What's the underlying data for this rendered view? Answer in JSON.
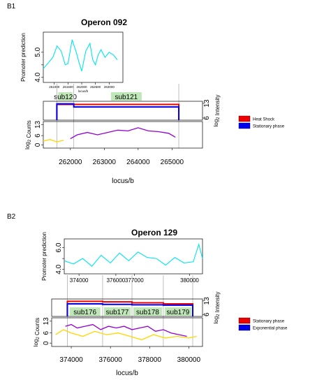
{
  "chart_data": [
    {
      "panel_id": "B1",
      "type": "line",
      "title": "Operon 092",
      "promoter": {
        "ylabel": "Promoter prediction",
        "ylim": [
          3.8,
          5.8
        ],
        "yticks": [
          4.0,
          4.5,
          5.0
        ],
        "ytick_labels": [
          "4.0",
          "",
          "5.0"
        ],
        "xlim": [
          260600,
          263500
        ],
        "xticks": [
          261000,
          261500,
          262000,
          262500,
          263000
        ],
        "xticks_display": [
          261000,
          261500,
          262000,
          262500,
          263000
        ],
        "xlabel": "locus/b",
        "series": [
          {
            "color": "#00e5ee",
            "x": [
              260600,
              260800,
              260950,
              261100,
              261250,
              261400,
              261500,
              261650,
              261800,
              261900,
              262000,
              262150,
              262300,
              262400,
              262500,
              262600,
              262700,
              262850,
              263000,
              263150,
              263300
            ],
            "y": [
              4.35,
              4.6,
              4.8,
              5.25,
              5.05,
              4.5,
              4.55,
              5.5,
              5.0,
              4.6,
              4.25,
              5.05,
              5.35,
              4.7,
              4.5,
              4.9,
              5.1,
              4.8,
              5.0,
              4.9,
              4.7
            ]
          }
        ]
      },
      "intensity": {
        "ylabel_main": "log",
        "ylabel_sub": "2",
        "ylabel_rest": " Intensity",
        "yticks": [
          6,
          13
        ],
        "ylim": [
          5,
          14
        ]
      },
      "counts": {
        "ylabel_main": "log",
        "ylabel_sub": "2",
        "ylabel_rest": " Counts",
        "yticks": [
          0,
          6,
          13
        ],
        "ylim": [
          -2,
          15
        ],
        "series": [
          {
            "color": "#ffd700",
            "x": [
              261200,
              261400,
              261600,
              261800
            ],
            "y": [
              2.5,
              3.5,
              2,
              3
            ]
          },
          {
            "color": "#9400d3",
            "x": [
              262000,
              262200,
              262500,
              262800,
              263100,
              263400,
              263700,
              264000,
              264300,
              264600,
              264900,
              265100
            ],
            "y": [
              4,
              6.5,
              8,
              6.5,
              8,
              9.5,
              9,
              11,
              9,
              8.5,
              7.5,
              5
            ]
          }
        ]
      },
      "xlim": [
        261200,
        265900
      ],
      "xticks": [
        262000,
        263000,
        264000,
        265000
      ],
      "xticks_display": [
        262000,
        263000,
        264000,
        265000
      ],
      "xlabel": "locus/b",
      "suboperons": [
        {
          "label": "sub120",
          "from": 261600,
          "to": 262100
        },
        {
          "label": "sub121",
          "from": 262100,
          "to": 265200
        }
      ],
      "step_series": [
        {
          "name": "Heat Shock",
          "color": "#ee0000",
          "x": [
            261600,
            262100,
            265200
          ],
          "y": [
            12.5,
            12.5,
            12.5
          ]
        },
        {
          "name": "Stationary phase",
          "color": "#0000ee",
          "x": [
            261600,
            262100,
            265200
          ],
          "y": [
            12.8,
            11.3,
            11.3
          ]
        }
      ],
      "legend": [
        {
          "name": "Heat Shock",
          "color": "#ee0000"
        },
        {
          "name": "Stationary phase",
          "color": "#0000ee"
        }
      ]
    },
    {
      "panel_id": "B2",
      "type": "line",
      "title": "Operon 129",
      "promoter": {
        "ylabel": "Promoter prediction",
        "ylim": [
          3.6,
          6.8
        ],
        "yticks": [
          4.0,
          5.0,
          6.0
        ],
        "ytick_labels": [
          "4.0",
          "",
          "6.0"
        ],
        "xlim": [
          373200,
          380700
        ],
        "xticks": [
          374000,
          376000,
          377000,
          380000
        ],
        "xticks_display": [
          374000,
          376000,
          377000,
          380000
        ],
        "xlabel": "",
        "series": [
          {
            "color": "#00e5ee",
            "x": [
              373200,
              373700,
              374200,
              374700,
              375200,
              375700,
              376200,
              376700,
              377200,
              377700,
              378200,
              378700,
              379200,
              379700,
              380200,
              380500,
              380700
            ],
            "y": [
              4.8,
              4.5,
              5.0,
              4.3,
              5.3,
              4.6,
              5.5,
              4.8,
              5.6,
              5.1,
              5.0,
              4.4,
              5.1,
              4.6,
              4.7,
              6.3,
              5.0
            ]
          }
        ]
      },
      "intensity": {
        "ylabel_main": "log",
        "ylabel_sub": "2",
        "ylabel_rest": " Intensity",
        "yticks": [
          6,
          13
        ],
        "ylim": [
          5,
          14
        ]
      },
      "counts": {
        "ylabel_main": "log",
        "ylabel_sub": "2",
        "ylabel_rest": " Counts",
        "yticks": [
          0,
          6,
          13
        ],
        "ylim": [
          -2,
          15
        ],
        "series": [
          {
            "color": "#ffd700",
            "x": [
              373200,
              373600,
              374000,
              374600,
              375200,
              375800,
              376400,
              377000,
              377600,
              378200,
              378800,
              379400,
              380000,
              380400
            ],
            "y": [
              5,
              8,
              6,
              4,
              7,
              5,
              6,
              4,
              2,
              5,
              3,
              4,
              3,
              4
            ]
          },
          {
            "color": "#9400d3",
            "x": [
              373700,
              374000,
              374300,
              374700,
              375100,
              375500,
              375900,
              376300,
              376700,
              377100,
              377500,
              377900,
              378300,
              378700,
              379100,
              379500,
              379900
            ],
            "y": [
              10,
              11,
              9,
              10,
              11,
              8,
              10,
              9,
              10,
              8,
              9,
              10,
              7,
              8,
              6,
              5,
              4
            ]
          }
        ]
      },
      "xlim": [
        373000,
        380700
      ],
      "xticks": [
        374000,
        376000,
        378000,
        380000
      ],
      "xticks_display": [
        374000,
        376000,
        378000,
        380000
      ],
      "xlabel": "locus/b",
      "suboperons": [
        {
          "label": "sub176",
          "from": 373800,
          "to": 375600
        },
        {
          "label": "sub177",
          "from": 375600,
          "to": 377100
        },
        {
          "label": "sub178",
          "from": 377100,
          "to": 378700
        },
        {
          "label": "sub179",
          "from": 378700,
          "to": 380200
        }
      ],
      "step_series": [
        {
          "name": "Stationary phase",
          "color": "#ee0000",
          "x": [
            373800,
            375600,
            377100,
            378700,
            380200
          ],
          "y": [
            12.8,
            12.5,
            12.0,
            11.5,
            11.5
          ]
        },
        {
          "name": "Exponential phase",
          "color": "#0000ee",
          "x": [
            373800,
            375600,
            377100,
            378700,
            380200
          ],
          "y": [
            11.5,
            11.2,
            11.0,
            10.8,
            10.8
          ]
        }
      ],
      "legend": [
        {
          "name": "Stationary phase",
          "color": "#ee0000"
        },
        {
          "name": "Exponential phase",
          "color": "#0000ee"
        }
      ]
    }
  ]
}
